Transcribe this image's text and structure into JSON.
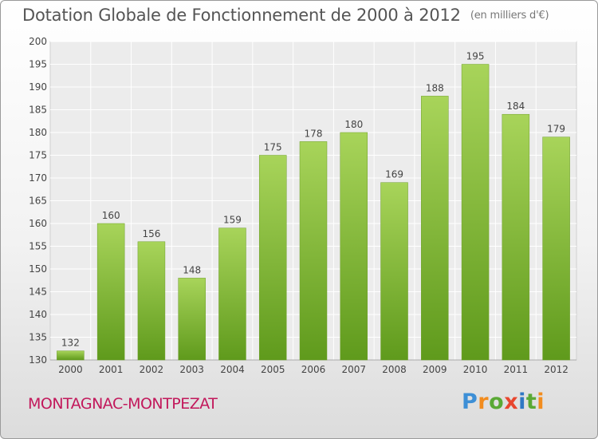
{
  "title": "Dotation Globale de Fonctionnement de 2000 à 2012",
  "unit": "(en milliers d'€)",
  "commune": "MONTAGNAC-MONTPEZAT",
  "logo": "Proxiti",
  "colors": {
    "bar_top": "#a8d45a",
    "bar_bottom": "#5f9a1c",
    "commune": "#c2185b"
  },
  "chart_data": {
    "type": "bar",
    "title": "Dotation Globale de Fonctionnement de 2000 à 2012",
    "xlabel": "",
    "ylabel": "",
    "categories": [
      "2000",
      "2001",
      "2002",
      "2003",
      "2004",
      "2005",
      "2006",
      "2007",
      "2008",
      "2009",
      "2010",
      "2011",
      "2012"
    ],
    "values": [
      132,
      160,
      156,
      148,
      159,
      175,
      178,
      180,
      169,
      188,
      195,
      184,
      179
    ],
    "ylim": [
      130,
      200
    ],
    "yticks": [
      130,
      135,
      140,
      145,
      150,
      155,
      160,
      165,
      170,
      175,
      180,
      185,
      190,
      195,
      200
    ],
    "grid": true
  }
}
